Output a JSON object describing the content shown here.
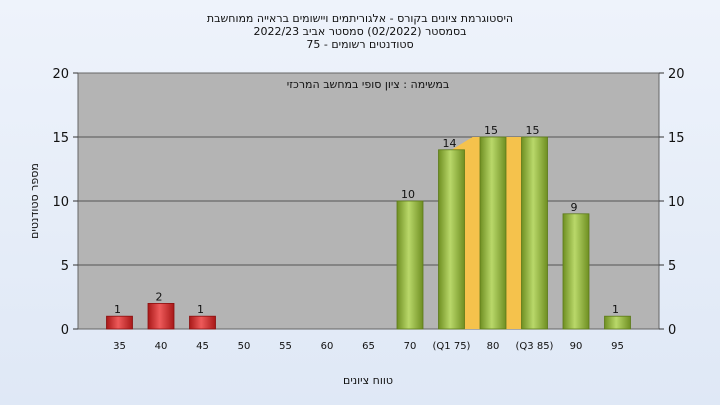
{
  "chart_data": {
    "type": "bar",
    "title_lines": [
      "היסטוגרמת ציונים בקורס - אלגוריתמים ויישומים בראייה ממוחשבת",
      "בסמסטר  (02/2022)  סמסטר אביב 2022/23",
      "סטודנטים רשומים - 75"
    ],
    "subtitle": "במשימה : ציון סופי במחשב המרכזי",
    "xlabel": "טווח ציונים",
    "ylabel": "מספר סטודנטים",
    "ylim": [
      0,
      20
    ],
    "yticks": [
      0,
      5,
      10,
      15,
      20
    ],
    "grid": true,
    "categories": [
      "35",
      "40",
      "45",
      "50",
      "55",
      "60",
      "65",
      "70",
      "(Q1 75)",
      "80",
      "(Q3 85)",
      "90",
      "95"
    ],
    "values": [
      1,
      2,
      1,
      0,
      0,
      0,
      0,
      10,
      14,
      15,
      15,
      9,
      1
    ],
    "bar_colors": [
      "red",
      "red",
      "red",
      "green",
      "green",
      "green",
      "green",
      "green",
      "green",
      "green",
      "green",
      "green",
      "green"
    ],
    "iqr_highlight": {
      "from": "(Q1 75)",
      "to": "(Q3 85)"
    },
    "colors": {
      "red": "#d42a2a",
      "green": "#93b83a",
      "band": "#f5c24c",
      "plot_bg": "#b4b4b4"
    }
  }
}
